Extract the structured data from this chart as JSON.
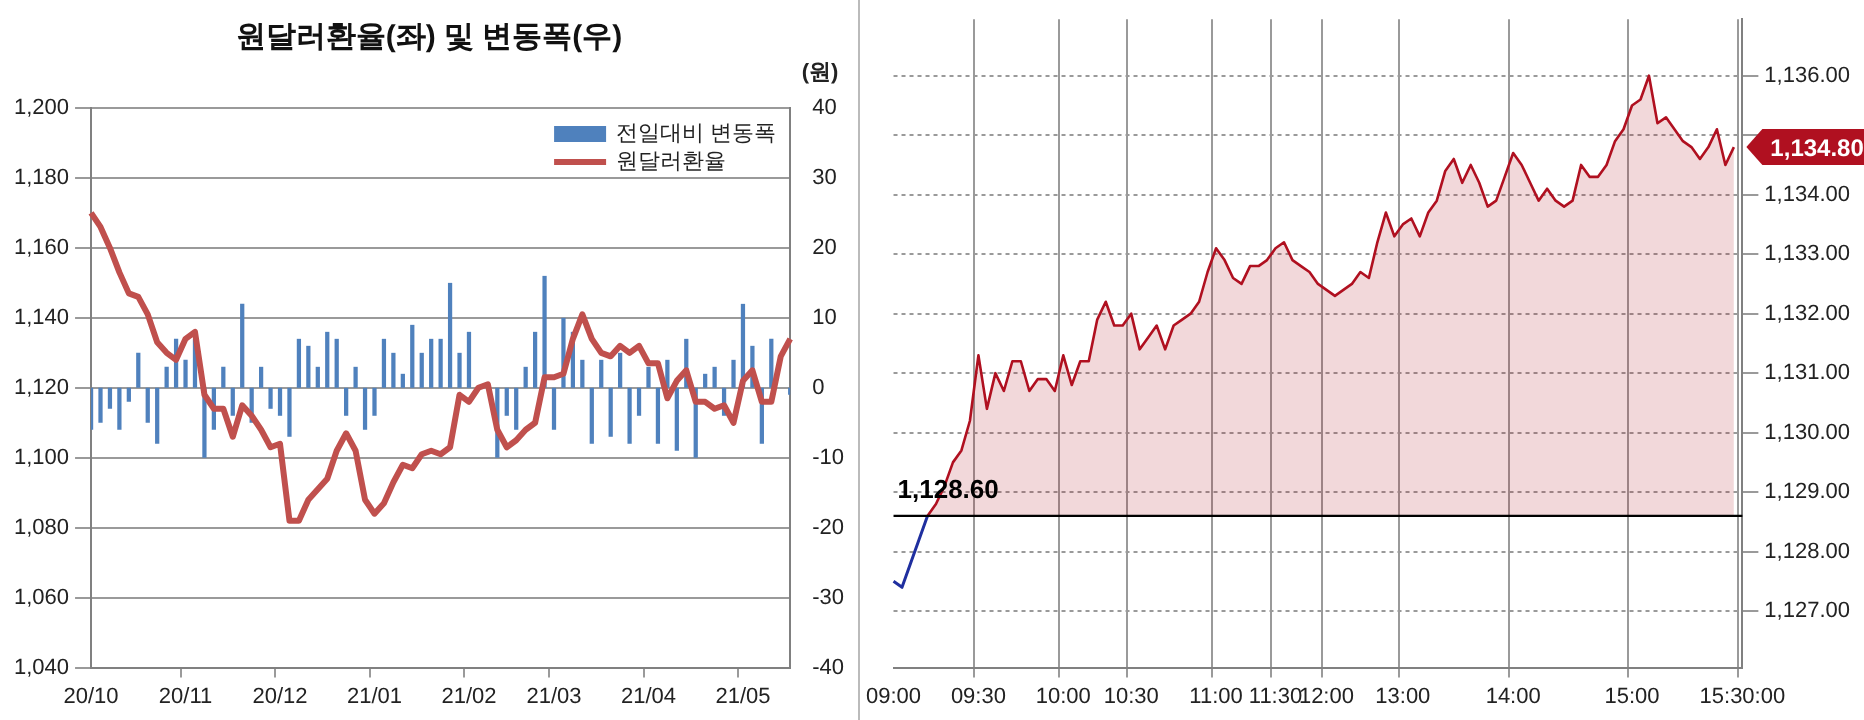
{
  "chart_data": [
    {
      "type": "bar",
      "title": "원달러환율(좌) 및 변동폭(우)",
      "y2label": "(원)",
      "categories": [
        "20/10",
        null,
        null,
        null,
        null,
        null,
        null,
        null,
        null,
        null,
        "20/11",
        null,
        null,
        null,
        null,
        null,
        null,
        null,
        null,
        null,
        "20/12",
        null,
        null,
        null,
        null,
        null,
        null,
        null,
        null,
        null,
        "21/01",
        null,
        null,
        null,
        null,
        null,
        null,
        null,
        null,
        null,
        "21/02",
        null,
        null,
        null,
        null,
        null,
        null,
        null,
        null,
        "21/03",
        null,
        null,
        null,
        null,
        null,
        null,
        null,
        null,
        null,
        "21/04",
        null,
        null,
        null,
        null,
        null,
        null,
        null,
        null,
        null,
        "21/05",
        null,
        null,
        null,
        null,
        null
      ],
      "series": [
        {
          "name": "전일대비 변동폭",
          "type": "bar",
          "axis": "y2",
          "color": "#4f81bd",
          "values": [
            -6,
            -5,
            -3,
            -6,
            -2,
            5,
            -5,
            -8,
            3,
            7,
            4,
            7,
            -10,
            -6,
            3,
            -4,
            12,
            -5,
            3,
            -3,
            -4,
            -7,
            7,
            6,
            3,
            8,
            7,
            -4,
            3,
            -6,
            -4,
            7,
            5,
            2,
            9,
            5,
            7,
            7,
            15,
            5,
            8,
            null,
            null,
            -10,
            -4,
            -6,
            3,
            8,
            16,
            -6,
            10,
            8,
            4,
            -8,
            4,
            -7,
            5,
            -8,
            -4,
            3,
            -8,
            4,
            -9,
            7,
            -10,
            2,
            3,
            -4,
            4,
            12,
            6,
            -8,
            7,
            null,
            -1
          ]
        },
        {
          "name": "원달러환율",
          "type": "line",
          "color": "#c0504d",
          "values": [
            1170,
            1166,
            1160,
            1153,
            1147,
            1146,
            1141,
            1133,
            1130,
            1128,
            1134,
            1136,
            1118,
            1114,
            1114,
            1106,
            1115,
            1112,
            1108,
            1103,
            1104,
            1082,
            1082,
            1088,
            1091,
            1094,
            1102,
            1107,
            1102,
            1088,
            1084,
            1087,
            1093,
            1098,
            1097,
            1101,
            1102,
            1101,
            1103,
            1118,
            1116,
            1120,
            1121,
            1108,
            1103,
            1105,
            1108,
            1110,
            1123,
            1123,
            1124,
            1134,
            1141,
            1134,
            1130,
            1129,
            1132,
            1130,
            1132,
            1127,
            1127,
            1117,
            1122,
            1125,
            1116,
            1116,
            1114,
            1115,
            1110,
            1122,
            1125,
            1116,
            1116,
            1129,
            1134
          ]
        }
      ],
      "ylim": [
        1040,
        1200
      ],
      "yticks": [
        {
          "value": 1040,
          "label": "1,040"
        },
        {
          "value": 1060,
          "label": "1,060"
        },
        {
          "value": 1080,
          "label": "1,080"
        },
        {
          "value": 1100,
          "label": "1,100"
        },
        {
          "value": 1120,
          "label": "1,120"
        },
        {
          "value": 1140,
          "label": "1,140"
        },
        {
          "value": 1160,
          "label": "1,160"
        },
        {
          "value": 1180,
          "label": "1,180"
        },
        {
          "value": 1200,
          "label": "1,200"
        }
      ],
      "y2lim": [
        -40,
        40
      ],
      "y2ticks": [
        -40,
        -30,
        -20,
        -10,
        0,
        10,
        20,
        30,
        40
      ],
      "grid": "y",
      "legend": "top right"
    },
    {
      "type": "area",
      "categories": [
        "09:00",
        null,
        null,
        null,
        null,
        null,
        null,
        null,
        null,
        null,
        "09:30",
        null,
        null,
        null,
        null,
        null,
        null,
        null,
        null,
        null,
        "10:00",
        null,
        null,
        null,
        null,
        null,
        null,
        null,
        "10:30",
        null,
        null,
        null,
        null,
        null,
        null,
        null,
        null,
        null,
        "11:00",
        null,
        null,
        null,
        null,
        null,
        null,
        "11:30",
        null,
        null,
        null,
        null,
        null,
        "12:00",
        null,
        null,
        null,
        null,
        null,
        null,
        null,
        null,
        "13:00",
        null,
        null,
        null,
        null,
        null,
        null,
        null,
        null,
        null,
        null,
        null,
        null,
        "14:00",
        null,
        null,
        null,
        null,
        null,
        null,
        null,
        null,
        null,
        null,
        null,
        null,
        null,
        "15:00",
        null,
        null,
        null,
        null,
        null,
        null,
        null,
        null,
        null,
        null,
        null,
        null,
        "15:30:00"
      ],
      "series": [
        {
          "type": "line",
          "color": "#1f2f9f",
          "values": [
            1127.5,
            1127.4,
            1127.8,
            1128.2,
            1128.6,
            null,
            null,
            null,
            null,
            null,
            null,
            null,
            null,
            null,
            null,
            null,
            null,
            null,
            null,
            null,
            null,
            null,
            null,
            null,
            null,
            null,
            null,
            null,
            null,
            null,
            null,
            null,
            null,
            null,
            null,
            null,
            null,
            null,
            null,
            null,
            null,
            null,
            null,
            null,
            null,
            null,
            null,
            null,
            null,
            null,
            null,
            null,
            null,
            null,
            null,
            null,
            null,
            null,
            null,
            null,
            null,
            null,
            null,
            null,
            null,
            null,
            null,
            null,
            null,
            null,
            null,
            null,
            null,
            null,
            null,
            null,
            null,
            null,
            null,
            null,
            null,
            null,
            null,
            null,
            null,
            null,
            null,
            null,
            null,
            null,
            null,
            null,
            null,
            null,
            null,
            null,
            null,
            null,
            null,
            null,
            null
          ]
        },
        {
          "color": "#b01020",
          "values": [
            null,
            null,
            null,
            null,
            1128.6,
            1128.8,
            1129.1,
            1129.5,
            1129.7,
            1130.2,
            1131.3,
            1130.4,
            1131.0,
            1130.7,
            1131.2,
            1131.2,
            1130.7,
            1130.9,
            1130.9,
            1130.7,
            1131.3,
            1130.8,
            1131.2,
            1131.2,
            1131.9,
            1132.2,
            1131.8,
            1131.8,
            1132.0,
            1131.4,
            1131.6,
            1131.8,
            1131.4,
            1131.8,
            1131.9,
            1132.0,
            1132.2,
            1132.7,
            1133.1,
            1132.9,
            1132.6,
            1132.5,
            1132.8,
            1132.8,
            1132.9,
            1133.1,
            1133.2,
            1132.9,
            1132.8,
            1132.7,
            1132.5,
            1132.4,
            1132.3,
            1132.4,
            1132.5,
            1132.7,
            1132.6,
            1133.2,
            1133.7,
            1133.3,
            1133.5,
            1133.6,
            1133.3,
            1133.7,
            1133.9,
            1134.4,
            1134.6,
            1134.2,
            1134.5,
            1134.2,
            1133.8,
            1133.9,
            1134.3,
            1134.7,
            1134.5,
            1134.2,
            1133.9,
            1134.1,
            1133.9,
            1133.8,
            1133.9,
            1134.5,
            1134.3,
            1134.3,
            1134.5,
            1134.9,
            1135.1,
            1135.5,
            1135.6,
            1136.0,
            1135.2,
            1135.3,
            1135.1,
            1134.9,
            1134.8,
            1134.6,
            1134.8,
            1135.1,
            1134.5,
            1134.8,
            null
          ]
        }
      ],
      "ylim": [
        1126.05,
        1136.95
      ],
      "yticks": [
        {
          "value": 1127,
          "label": "1,127.00"
        },
        {
          "value": 1128,
          "label": "1,128.00"
        },
        {
          "value": 1129,
          "label": "1,129.00"
        },
        {
          "value": 1130,
          "label": "1,130.00"
        },
        {
          "value": 1131,
          "label": "1,131.00"
        },
        {
          "value": 1132,
          "label": "1,132.00"
        },
        {
          "value": 1133,
          "label": "1,133.00"
        },
        {
          "value": 1134,
          "label": "1,134.00"
        },
        {
          "value": 1135,
          "label": null
        },
        {
          "value": 1136,
          "label": "1,136.00"
        }
      ],
      "ref_lines": [
        {
          "axis": "y",
          "value": 1128.6,
          "label": "1,128.60",
          "color": "#000000"
        }
      ],
      "annotations": [
        "1,134.80"
      ],
      "grid": true
    }
  ]
}
